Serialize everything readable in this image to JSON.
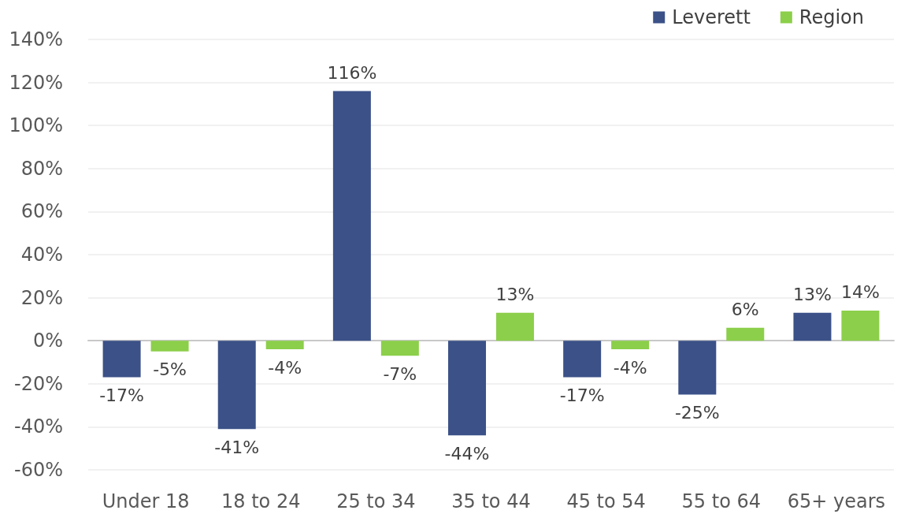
{
  "chart_data": {
    "type": "bar",
    "categories": [
      "Under 18",
      "18 to 24",
      "25 to 34",
      "35 to 44",
      "45 to 54",
      "55 to 64",
      "65+ years"
    ],
    "series": [
      {
        "name": "Leverett",
        "color": "#3b5188",
        "values": [
          -17,
          -41,
          116,
          -44,
          -17,
          -25,
          13
        ],
        "value_labels": [
          "-17%",
          "-41%",
          "116%",
          "-44%",
          "-17%",
          "-25%",
          "13%"
        ]
      },
      {
        "name": "Region",
        "color": "#8ccf4a",
        "values": [
          -5,
          -4,
          -7,
          13,
          -4,
          6,
          14
        ],
        "value_labels": [
          "-5%",
          "-4%",
          "-7%",
          "13%",
          "-4%",
          "6%",
          "14%"
        ]
      }
    ],
    "ylim": [
      -60,
      140
    ],
    "yticks": [
      {
        "value": -60,
        "label": "-60%"
      },
      {
        "value": -40,
        "label": "-40%"
      },
      {
        "value": -20,
        "label": "-20%"
      },
      {
        "value": 0,
        "label": "0%"
      },
      {
        "value": 20,
        "label": "20%"
      },
      {
        "value": 40,
        "label": "40%"
      },
      {
        "value": 60,
        "label": "60%"
      },
      {
        "value": 80,
        "label": "80%"
      },
      {
        "value": 100,
        "label": "100%"
      },
      {
        "value": 120,
        "label": "120%"
      },
      {
        "value": 140,
        "label": "140%"
      }
    ],
    "grid": "y",
    "legend": "top right"
  }
}
